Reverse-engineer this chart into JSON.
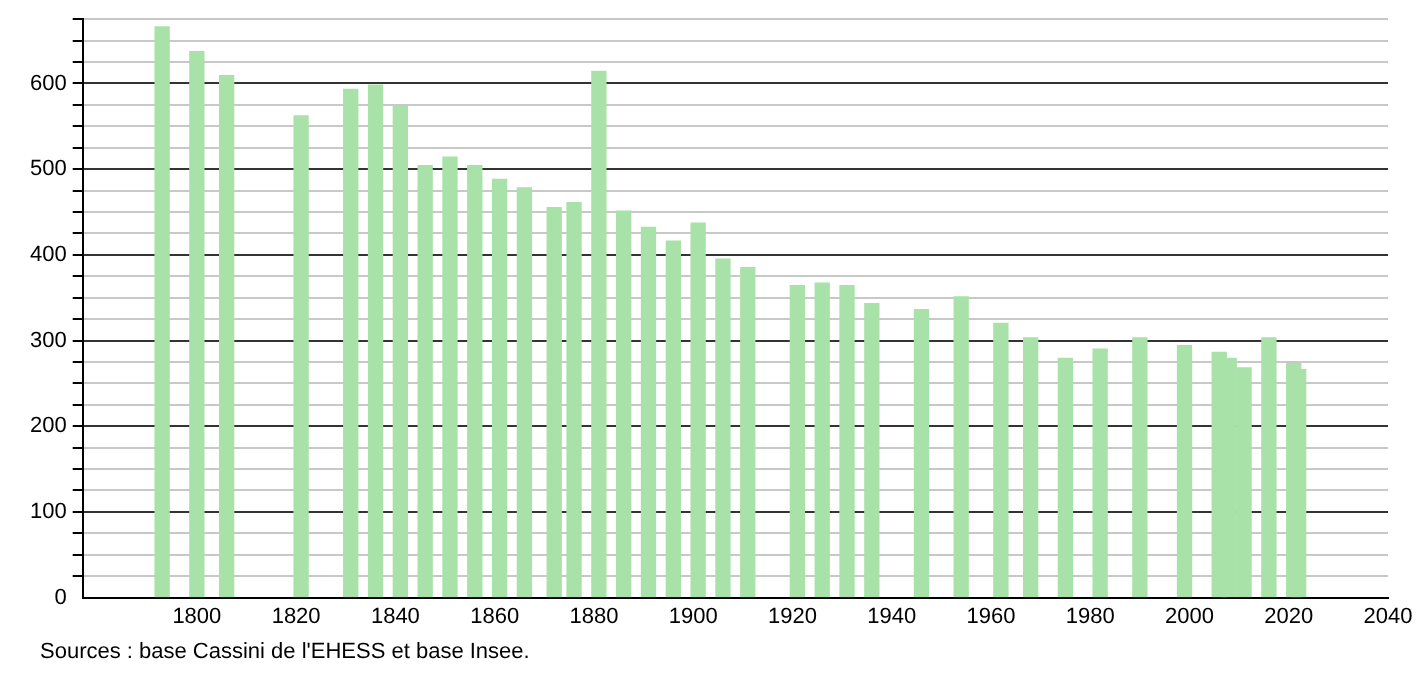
{
  "chart_data": {
    "type": "bar",
    "color": "#a8e2a8",
    "x": [
      1793,
      1800,
      1806,
      1821,
      1831,
      1836,
      1841,
      1846,
      1851,
      1856,
      1861,
      1866,
      1872,
      1876,
      1881,
      1886,
      1891,
      1896,
      1901,
      1906,
      1911,
      1921,
      1926,
      1931,
      1936,
      1946,
      1954,
      1962,
      1968,
      1975,
      1982,
      1990,
      1999,
      2006,
      2008,
      2011,
      2016,
      2021,
      2022
    ],
    "values": [
      666,
      637,
      609,
      562,
      593,
      598,
      574,
      504,
      514,
      504,
      488,
      478,
      455,
      461,
      614,
      451,
      432,
      416,
      437,
      395,
      385,
      364,
      367,
      364,
      343,
      336,
      351,
      320,
      303,
      279,
      290,
      303,
      294,
      286,
      279,
      268,
      303,
      273,
      266
    ],
    "xlim": [
      1777,
      2040
    ],
    "xticks": [
      1800,
      1820,
      1840,
      1860,
      1880,
      1900,
      1920,
      1940,
      1960,
      1980,
      2000,
      2020,
      2040
    ],
    "ylim": [
      0,
      675
    ],
    "yticks": [
      0,
      {
        "value": 25,
        "label": null
      },
      {
        "value": 50,
        "label": null
      },
      {
        "value": 75,
        "label": null
      },
      100,
      {
        "value": 125,
        "label": null
      },
      {
        "value": 150,
        "label": null
      },
      {
        "value": 175,
        "label": null
      },
      200,
      {
        "value": 225,
        "label": null
      },
      {
        "value": 250,
        "label": null
      },
      {
        "value": 275,
        "label": null
      },
      300,
      {
        "value": 325,
        "label": null
      },
      {
        "value": 350,
        "label": null
      },
      {
        "value": 375,
        "label": null
      },
      400,
      {
        "value": 425,
        "label": null
      },
      {
        "value": 450,
        "label": null
      },
      {
        "value": 475,
        "label": null
      },
      500,
      {
        "value": 525,
        "label": null
      },
      {
        "value": 550,
        "label": null
      },
      {
        "value": 575,
        "label": null
      },
      600,
      {
        "value": 625,
        "label": null
      },
      {
        "value": 650,
        "label": null
      },
      {
        "value": 675,
        "label": null
      }
    ],
    "grid": "y",
    "annotations": [
      "Sources : base Cassini de l'EHESS et base Insee."
    ]
  }
}
